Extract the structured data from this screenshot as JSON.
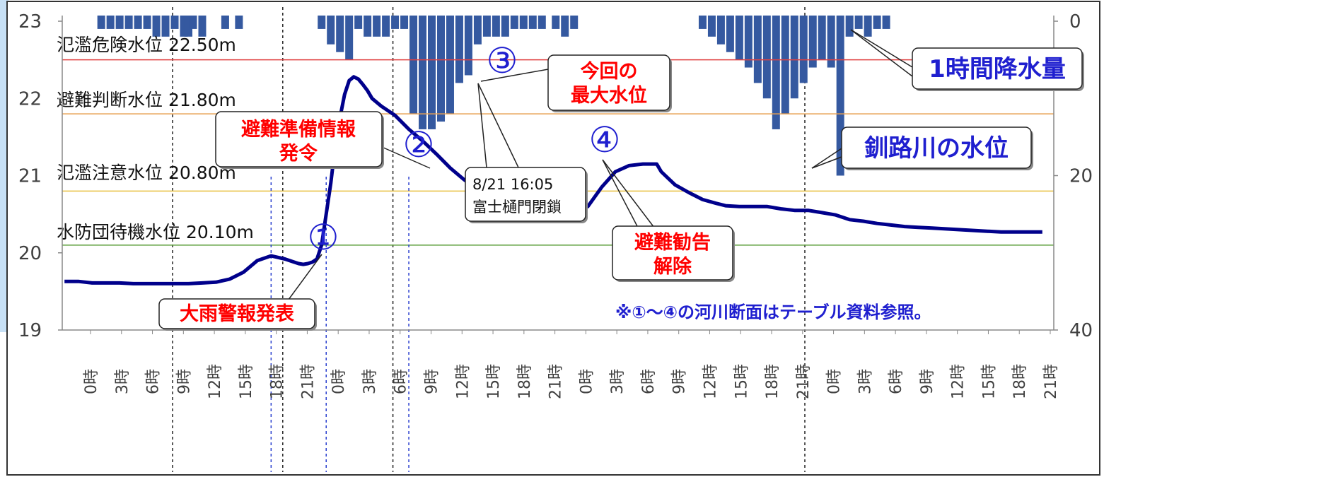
{
  "chart_data": {
    "type": "line",
    "y_left": {
      "ticks": [
        "19",
        "20",
        "21",
        "22",
        "23"
      ],
      "ylim": [
        19,
        23
      ]
    },
    "y_right": {
      "ticks": [
        "0",
        "20",
        "40"
      ],
      "ylim_inverted": [
        0,
        40
      ]
    },
    "x_tick_labels": [
      "0時",
      "3時",
      "6時",
      "9時",
      "12時",
      "15時",
      "18時",
      "21時",
      "0時",
      "3時",
      "6時",
      "9時",
      "12時",
      "15時",
      "18時",
      "21時",
      "0時",
      "3時",
      "6時",
      "9時",
      "12時",
      "15時",
      "18時",
      "21時",
      "0時",
      "3時",
      "6時",
      "9時",
      "12時",
      "15時",
      "18時",
      "21時"
    ],
    "water_level": {
      "name": "釧路川の水位",
      "color": "#00008b",
      "x_hours": [
        0,
        3,
        6,
        9,
        12,
        15,
        18,
        21,
        24,
        27,
        30,
        33,
        36,
        39,
        42,
        45,
        48,
        50,
        51,
        52,
        53,
        54,
        55,
        56,
        57,
        58,
        59,
        60,
        61,
        62,
        63,
        64,
        65,
        66,
        67,
        69,
        72,
        75,
        78,
        81,
        84,
        87,
        90,
        93,
        96,
        99,
        102,
        105,
        108,
        111,
        114,
        117,
        120,
        123,
        126,
        129,
        130,
        133,
        136,
        139,
        142,
        144,
        147,
        150,
        153,
        156,
        159,
        162,
        165,
        168,
        171,
        174,
        177,
        180,
        183,
        186,
        189,
        192,
        195,
        198,
        201,
        204,
        207,
        213
      ],
      "y_values": [
        19.63,
        19.63,
        19.61,
        19.61,
        19.61,
        19.6,
        19.6,
        19.6,
        19.6,
        19.6,
        19.61,
        19.62,
        19.66,
        19.75,
        19.9,
        19.96,
        19.92,
        19.88,
        19.86,
        19.85,
        19.86,
        19.88,
        19.92,
        20.1,
        20.5,
        20.9,
        21.4,
        21.75,
        22.05,
        22.23,
        22.28,
        22.25,
        22.18,
        22.1,
        22.0,
        21.9,
        21.78,
        21.6,
        21.45,
        21.28,
        21.1,
        20.95,
        20.82,
        20.72,
        20.65,
        20.59,
        20.55,
        20.52,
        20.52,
        20.51,
        20.6,
        20.85,
        21.05,
        21.13,
        21.15,
        21.15,
        21.05,
        20.88,
        20.78,
        20.69,
        20.64,
        20.61,
        20.6,
        20.6,
        20.6,
        20.57,
        20.55,
        20.55,
        20.52,
        20.49,
        20.43,
        20.41,
        20.38,
        20.36,
        20.34,
        20.33,
        20.32,
        20.31,
        20.3,
        20.29,
        20.28,
        20.27,
        20.27,
        20.27
      ]
    },
    "rainfall": {
      "name": "1時間降水量",
      "color": "#3559a0",
      "unit": "mm",
      "x_hours": [
        8,
        10,
        12,
        14,
        16,
        18,
        20,
        22,
        24,
        26,
        27,
        28,
        30,
        35,
        38,
        56,
        58,
        60,
        62,
        64,
        66,
        68,
        70,
        72,
        74,
        76,
        78,
        80,
        82,
        84,
        86,
        88,
        90,
        92,
        94,
        96,
        98,
        100,
        102,
        104,
        107,
        109,
        111,
        139,
        141,
        143,
        145,
        147,
        149,
        151,
        153,
        155,
        157,
        159,
        161,
        163,
        165,
        167,
        169,
        171,
        173,
        175,
        177,
        179
      ],
      "values": [
        1,
        1,
        1,
        1,
        1,
        1,
        2,
        2,
        1,
        2,
        2,
        1,
        2,
        1,
        1,
        1,
        3,
        4,
        5,
        1,
        2,
        2,
        2,
        1,
        1,
        12,
        14,
        14,
        13,
        12,
        8,
        7,
        3,
        2,
        2,
        2,
        1,
        1,
        1,
        1,
        1,
        2,
        1,
        1,
        2,
        3,
        4,
        5,
        6,
        8,
        10,
        14,
        12,
        10,
        8,
        6,
        5,
        6,
        20,
        2,
        1,
        2,
        1,
        1
      ]
    },
    "levels": [
      {
        "label": "氾濫危険水位 22.50m",
        "value": 22.5,
        "color": "#e04040"
      },
      {
        "label": "避難判断水位 21.80m",
        "value": 21.8,
        "color": "#e8a050"
      },
      {
        "label": "氾濫注意水位 20.80m",
        "value": 20.8,
        "color": "#e8c040"
      },
      {
        "label": "水防団待機水位 20.10m",
        "value": 20.1,
        "color": "#60a040"
      }
    ],
    "events": [
      {
        "mark": "①",
        "label": "大雨警報発表",
        "hour": 45
      },
      {
        "mark": "②",
        "label_lines": [
          "避難準備情報",
          "発令"
        ],
        "hour": 57
      },
      {
        "mark": "③",
        "label_lines": [
          "今回の",
          "最大水位"
        ],
        "hour": 63
      },
      {
        "mark": "④",
        "label_lines": [
          "避難勧告",
          "解除"
        ],
        "hour": 75
      }
    ],
    "gate_note": [
      "8/21 16:05",
      "富士樋門閉鎖"
    ],
    "series_labels": {
      "rain": "1時間降水量",
      "water": "釧路川の水位"
    },
    "footnote": "※①～④の河川断面はテーブル資料参照。",
    "day_boundaries_hours": [
      24,
      48,
      72
    ],
    "event_guides_hours": [
      45,
      57,
      75
    ]
  }
}
